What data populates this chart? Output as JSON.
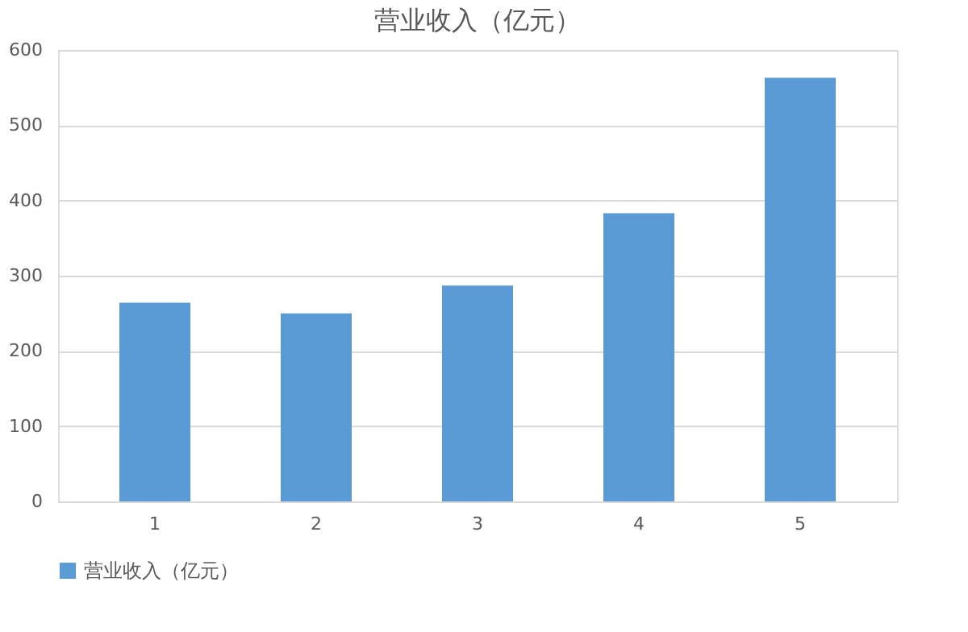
{
  "chart_data": {
    "type": "bar",
    "title": "营业收入（亿元）",
    "categories": [
      "1",
      "2",
      "3",
      "4",
      "5"
    ],
    "series": [
      {
        "name": "营业收入（亿元）",
        "color": "#5b9bd5",
        "values": [
          264,
          250,
          287,
          383,
          563
        ]
      }
    ],
    "ylim": [
      0,
      600
    ],
    "yticks": [
      0,
      100,
      200,
      300,
      400,
      500,
      600
    ],
    "grid": "y",
    "legend": "bottom"
  }
}
